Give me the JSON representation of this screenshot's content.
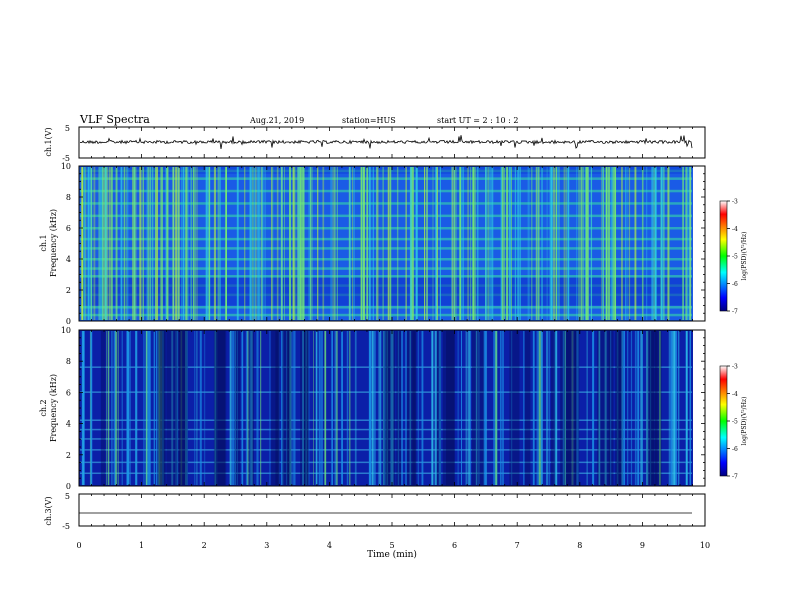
{
  "header": {
    "title": "VLF Spectra",
    "date": "Aug.21, 2019",
    "station": "station=HUS",
    "start": "start UT =  2 : 10 : 2"
  },
  "chart_data": [
    {
      "type": "line",
      "id": "ch1",
      "ylabel": "ch.1(V)",
      "ylim": [
        -5,
        5
      ],
      "yticks": [
        "5",
        "-5"
      ],
      "color": "#000000"
    },
    {
      "type": "heatmap",
      "id": "spec1",
      "ylabel": "ch.1\nFrequency (kHz)",
      "ylim": [
        0,
        10
      ],
      "yticks": [
        "0",
        "2",
        "4",
        "6",
        "8",
        "10"
      ],
      "colorbar": {
        "label": "log(PSD)(V²/Hz)",
        "range": [
          -7,
          -3
        ],
        "ticks": [
          "-3",
          "-4",
          "-5",
          "-6",
          "-7"
        ],
        "colormap": "jet"
      }
    },
    {
      "type": "heatmap",
      "id": "spec2",
      "ylabel": "ch.2\nFrequency (kHz)",
      "ylim": [
        0,
        10
      ],
      "yticks": [
        "0",
        "2",
        "4",
        "6",
        "8",
        "10"
      ],
      "colorbar": {
        "label": "log(PSD)(V²/Hz)",
        "range": [
          -7,
          -3
        ],
        "ticks": [
          "-3",
          "-4",
          "-5",
          "-6",
          "-7"
        ],
        "colormap": "jet"
      }
    },
    {
      "type": "line",
      "id": "ch3",
      "ylabel": "ch.3(V)",
      "ylim": [
        -5,
        5
      ],
      "yticks": [
        "5",
        "-5"
      ],
      "color": "#000000"
    }
  ],
  "xaxis": {
    "label": "Time (min)",
    "xlim": [
      0,
      10
    ],
    "ticks": [
      "0",
      "1",
      "2",
      "3",
      "4",
      "5",
      "6",
      "7",
      "8",
      "9",
      "10"
    ]
  }
}
